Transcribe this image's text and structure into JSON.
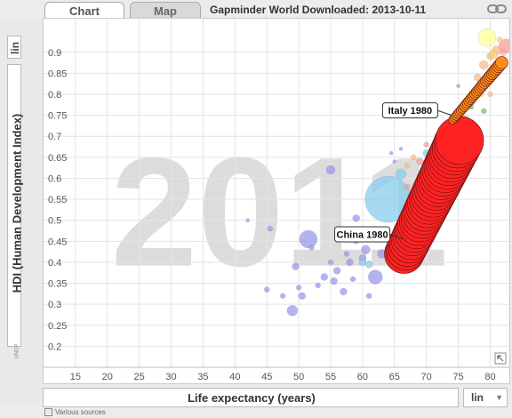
{
  "tabs": {
    "chart": "Chart",
    "map": "Map"
  },
  "title": "Gapminder World Downloaded: 2013-10-11",
  "scale": {
    "y": "lin",
    "x": "lin"
  },
  "sources_text": "Various sources",
  "undp_text": "UNDP",
  "chart_data": {
    "type": "scatter",
    "year_watermark": "2011",
    "xlabel": "Life expectancy (years)",
    "ylabel": "HDI (Human Development Index)",
    "xlim": [
      10,
      83
    ],
    "ylim": [
      0.15,
      0.98
    ],
    "xticks": [
      "15",
      "20",
      "25",
      "30",
      "35",
      "40",
      "45",
      "50",
      "55",
      "60",
      "65",
      "70",
      "75",
      "80"
    ],
    "yticks": [
      "0.2",
      "0.25",
      "0.3",
      "0.35",
      "0.4",
      "0.45",
      "0.5",
      "0.55",
      "0.6",
      "0.65",
      "0.7",
      "0.75",
      "0.8",
      "0.85",
      "0.9"
    ],
    "annotations": [
      {
        "label": "Italy 1980",
        "x": 74.0,
        "y": 0.75
      },
      {
        "label": "China 1980",
        "x": 66.5,
        "y": 0.455
      }
    ],
    "trails": [
      {
        "name": "China",
        "color": "#ff2222",
        "start": [
          66.5,
          0.42
        ],
        "end": [
          75.2,
          0.69
        ],
        "steps": 32,
        "rstart": 22,
        "rend": 27
      },
      {
        "name": "Italy",
        "color": "#ff8c1a",
        "start": [
          74.2,
          0.74
        ],
        "end": [
          81.8,
          0.875
        ],
        "steps": 32,
        "rstart": 5,
        "rend": 7
      }
    ],
    "points": [
      {
        "x": 45,
        "y": 0.335,
        "r": 3,
        "c": "#9999ee"
      },
      {
        "x": 47.5,
        "y": 0.32,
        "r": 3,
        "c": "#9999ee"
      },
      {
        "x": 49,
        "y": 0.285,
        "r": 6,
        "c": "#9999ee"
      },
      {
        "x": 50,
        "y": 0.34,
        "r": 3,
        "c": "#9999ee"
      },
      {
        "x": 50.5,
        "y": 0.32,
        "r": 4,
        "c": "#9999ee"
      },
      {
        "x": 49.5,
        "y": 0.39,
        "r": 4,
        "c": "#9999ee"
      },
      {
        "x": 51.5,
        "y": 0.455,
        "r": 10,
        "c": "#9999ee"
      },
      {
        "x": 52,
        "y": 0.435,
        "r": 3,
        "c": "#9999ee"
      },
      {
        "x": 53,
        "y": 0.345,
        "r": 3,
        "c": "#9999ee"
      },
      {
        "x": 54,
        "y": 0.365,
        "r": 4,
        "c": "#9999ee"
      },
      {
        "x": 55,
        "y": 0.4,
        "r": 3,
        "c": "#9999ee"
      },
      {
        "x": 55.5,
        "y": 0.355,
        "r": 4,
        "c": "#9999ee"
      },
      {
        "x": 56,
        "y": 0.38,
        "r": 4,
        "c": "#9999ee"
      },
      {
        "x": 57,
        "y": 0.33,
        "r": 4,
        "c": "#9999ee"
      },
      {
        "x": 57.5,
        "y": 0.42,
        "r": 3,
        "c": "#9999ee"
      },
      {
        "x": 58,
        "y": 0.4,
        "r": 4,
        "c": "#9999ee"
      },
      {
        "x": 58.5,
        "y": 0.36,
        "r": 3,
        "c": "#9999ee"
      },
      {
        "x": 59,
        "y": 0.45,
        "r": 3,
        "c": "#9999ee"
      },
      {
        "x": 60,
        "y": 0.41,
        "r": 4,
        "c": "#9999ee"
      },
      {
        "x": 61,
        "y": 0.32,
        "r": 3,
        "c": "#9999ee"
      },
      {
        "x": 62,
        "y": 0.365,
        "r": 8,
        "c": "#9999ee"
      },
      {
        "x": 63,
        "y": 0.42,
        "r": 5,
        "c": "#9999ee"
      },
      {
        "x": 55,
        "y": 0.62,
        "r": 5,
        "c": "#9999ee"
      },
      {
        "x": 45.5,
        "y": 0.48,
        "r": 3,
        "c": "#9999ee"
      },
      {
        "x": 42,
        "y": 0.5,
        "r": 2,
        "c": "#9999ee"
      },
      {
        "x": 59,
        "y": 0.505,
        "r": 4,
        "c": "#9999ee"
      },
      {
        "x": 60.5,
        "y": 0.43,
        "r": 5,
        "c": "#9999ee"
      },
      {
        "x": 61,
        "y": 0.395,
        "r": 4,
        "c": "#88ccee"
      },
      {
        "x": 64,
        "y": 0.55,
        "r": 26,
        "c": "#88ccee"
      },
      {
        "x": 62.5,
        "y": 0.47,
        "r": 5,
        "c": "#88ccee"
      },
      {
        "x": 60,
        "y": 0.4,
        "r": 4,
        "c": "#88ccee"
      },
      {
        "x": 66,
        "y": 0.61,
        "r": 6,
        "c": "#88ccee"
      },
      {
        "x": 70,
        "y": 0.66,
        "r": 4,
        "c": "#88ccee"
      },
      {
        "x": 72,
        "y": 0.7,
        "r": 5,
        "c": "#88ccee"
      },
      {
        "x": 74,
        "y": 0.64,
        "r": 4,
        "c": "#66cc66"
      },
      {
        "x": 72.5,
        "y": 0.67,
        "r": 4,
        "c": "#66cc66"
      },
      {
        "x": 75,
        "y": 0.72,
        "r": 3,
        "c": "#66cc66"
      },
      {
        "x": 76,
        "y": 0.7,
        "r": 4,
        "c": "#66cc66"
      },
      {
        "x": 78,
        "y": 0.81,
        "r": 4,
        "c": "#66cc66"
      },
      {
        "x": 77,
        "y": 0.77,
        "r": 3,
        "c": "#66cc66"
      },
      {
        "x": 71,
        "y": 0.6,
        "r": 4,
        "c": "#ffbb88"
      },
      {
        "x": 72,
        "y": 0.63,
        "r": 6,
        "c": "#ffbb88"
      },
      {
        "x": 74,
        "y": 0.68,
        "r": 3,
        "c": "#ffbb88"
      },
      {
        "x": 73,
        "y": 0.62,
        "r": 3,
        "c": "#ffbb88"
      },
      {
        "x": 75.5,
        "y": 0.65,
        "r": 4,
        "c": "#ffbb88"
      },
      {
        "x": 76,
        "y": 0.74,
        "r": 5,
        "c": "#ffbb88"
      },
      {
        "x": 77,
        "y": 0.78,
        "r": 4,
        "c": "#ffbb88"
      },
      {
        "x": 78,
        "y": 0.84,
        "r": 4,
        "c": "#ffbb88"
      },
      {
        "x": 79,
        "y": 0.87,
        "r": 5,
        "c": "#ffbb88"
      },
      {
        "x": 80,
        "y": 0.89,
        "r": 4,
        "c": "#ffbb88"
      },
      {
        "x": 81,
        "y": 0.905,
        "r": 5,
        "c": "#ffbb88"
      },
      {
        "x": 82,
        "y": 0.9,
        "r": 4,
        "c": "#ffbb88"
      },
      {
        "x": 79.5,
        "y": 0.935,
        "r": 10,
        "c": "#ffff99"
      },
      {
        "x": 82.5,
        "y": 0.915,
        "r": 8,
        "c": "#ff9999"
      },
      {
        "x": 80.5,
        "y": 0.895,
        "r": 5,
        "c": "#ffcc66"
      },
      {
        "x": 81.5,
        "y": 0.93,
        "r": 3,
        "c": "#ffcc66"
      },
      {
        "x": 78.5,
        "y": 0.8,
        "r": 3,
        "c": "#ffcc66"
      },
      {
        "x": 75,
        "y": 0.82,
        "r": 2,
        "c": "#66cc66"
      },
      {
        "x": 70,
        "y": 0.68,
        "r": 3,
        "c": "#ff9999"
      },
      {
        "x": 69,
        "y": 0.64,
        "r": 4,
        "c": "#ff9999"
      },
      {
        "x": 68,
        "y": 0.65,
        "r": 3,
        "c": "#ffbb88"
      },
      {
        "x": 67,
        "y": 0.63,
        "r": 3,
        "c": "#ffbb88"
      },
      {
        "x": 64.5,
        "y": 0.66,
        "r": 2,
        "c": "#9999ee"
      },
      {
        "x": 66,
        "y": 0.67,
        "r": 2,
        "c": "#9999ee"
      },
      {
        "x": 65,
        "y": 0.64,
        "r": 2,
        "c": "#9999ee"
      },
      {
        "x": 67,
        "y": 0.58,
        "r": 3,
        "c": "#ff9999"
      },
      {
        "x": 73.5,
        "y": 0.56,
        "r": 3,
        "c": "#ffcc66"
      },
      {
        "x": 74.5,
        "y": 0.58,
        "r": 3,
        "c": "#ffcc66"
      },
      {
        "x": 79,
        "y": 0.76,
        "r": 3,
        "c": "#66cc66"
      },
      {
        "x": 80,
        "y": 0.8,
        "r": 3,
        "c": "#ffbb88"
      }
    ]
  }
}
